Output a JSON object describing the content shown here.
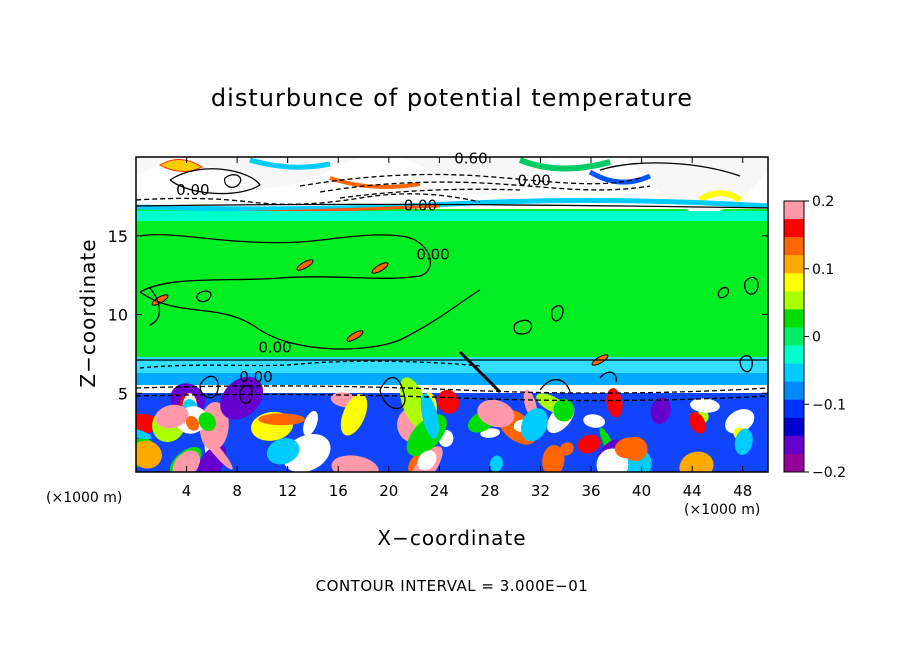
{
  "chart_data": {
    "type": "heatmap",
    "title": "disturbunce of potential temperature",
    "xlabel": "X−coordinate",
    "ylabel": "Z−coordinate",
    "x_unit": "(×1000 m)",
    "y_unit": "(×1000 m)",
    "footer": "CONTOUR INTERVAL = 3.000E−01",
    "xlim": [
      0,
      50
    ],
    "ylim": [
      0,
      20
    ],
    "x_ticks": [
      4,
      8,
      12,
      16,
      20,
      24,
      28,
      32,
      36,
      40,
      44,
      48
    ],
    "y_ticks": [
      5,
      10,
      15
    ],
    "colorbar": {
      "range": [
        -0.2,
        0.2
      ],
      "ticks": [
        0.2,
        0.1,
        0,
        -0.1,
        -0.2
      ],
      "tick_labels": [
        "0.2",
        "0.1",
        "0",
        "−0.1",
        "−0.2"
      ],
      "colors": [
        "#ff99aa",
        "#ff0000",
        "#ff6600",
        "#ffaa00",
        "#ffff00",
        "#aaff00",
        "#00dd00",
        "#00ee66",
        "#00ffcc",
        "#00ccff",
        "#0088ff",
        "#0033ff",
        "#0000cc",
        "#6600cc",
        "#990099"
      ]
    },
    "contour_labels": [
      {
        "text": "0.60",
        "x": 26.5,
        "y": 19.6
      },
      {
        "text": "0.00",
        "x": 31.5,
        "y": 18.2
      },
      {
        "text": "0.00",
        "x": 4.5,
        "y": 17.6
      },
      {
        "text": "0.00",
        "x": 22.5,
        "y": 16.6
      },
      {
        "text": "0.00",
        "x": 23.5,
        "y": 13.5
      },
      {
        "text": "0.00",
        "x": 11.0,
        "y": 7.6
      },
      {
        "text": "0.00",
        "x": 9.5,
        "y": 5.7
      }
    ]
  }
}
